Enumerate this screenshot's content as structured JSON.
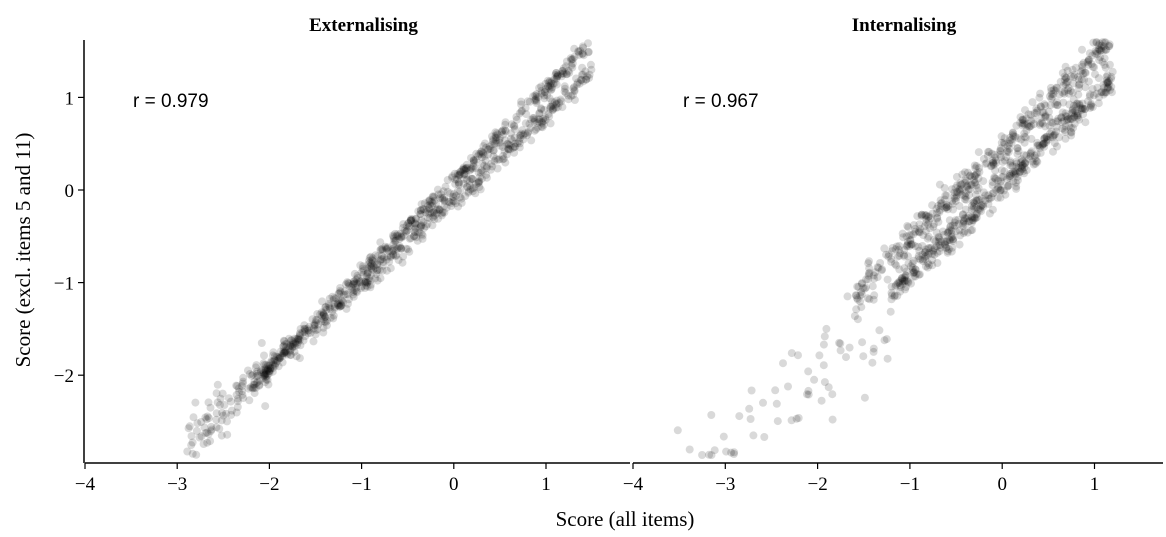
{
  "figure": {
    "xlabel": "Score (all items)",
    "ylabel": "Score (excl. items 5 and 11)"
  },
  "chart_data": [
    {
      "type": "scatter",
      "title": "Externalising",
      "annotation": "r = 0.979",
      "xlim": [
        -4,
        1.7
      ],
      "ylim": [
        -2.9,
        1.6
      ],
      "xticks": [
        -4,
        -3,
        -2,
        -1,
        0,
        1
      ],
      "yticks": [
        -2,
        -1,
        0,
        1
      ],
      "point_color": "#000000",
      "point_alpha": 0.15,
      "point_clusters": [
        {
          "x_range": [
            -2.1,
            1.5
          ],
          "slope": 1.0,
          "intercept": 0.1,
          "spread": 0.05
        },
        {
          "x_range": [
            -2.2,
            1.5
          ],
          "slope": 0.92,
          "intercept": -0.1,
          "spread": 0.06
        },
        {
          "x_range": [
            -2.9,
            -2.0
          ],
          "slope": 0.95,
          "intercept": 0.0,
          "spread": 0.15
        }
      ]
    },
    {
      "type": "scatter",
      "title": "Internalising",
      "annotation": "r = 0.967",
      "xlim": [
        -4,
        1.7
      ],
      "ylim": [
        -2.9,
        1.6
      ],
      "xticks": [
        -4,
        -3,
        -2,
        -1,
        0,
        1
      ],
      "yticks": [],
      "point_color": "#000000",
      "point_alpha": 0.15,
      "point_clusters": [
        {
          "x_range": [
            -1.6,
            1.2
          ],
          "slope": 1.0,
          "intercept": 0.45,
          "spread": 0.1
        },
        {
          "x_range": [
            -1.2,
            1.2
          ],
          "slope": 0.97,
          "intercept": 0.05,
          "spread": 0.08
        },
        {
          "x_range": [
            -3.8,
            -1.2
          ],
          "slope": 0.9,
          "intercept": -0.2,
          "spread": 0.3
        }
      ]
    }
  ]
}
